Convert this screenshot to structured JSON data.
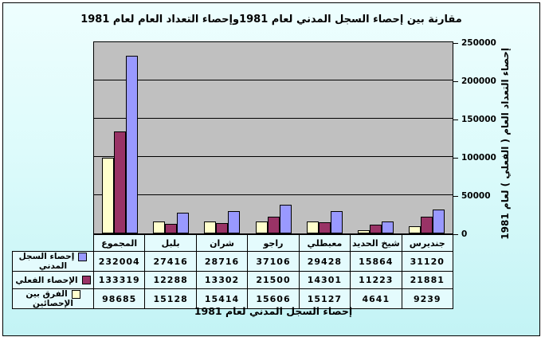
{
  "title": "مقارنة بين إحصاء السجل المدني لعام 1981وإحصاء التعداد العام لعام 1981",
  "x_axis_title": "إحصاء السجل المدني لعام 1981",
  "y_axis_title": "إحصاء التعداد العام ( الفعلي ) لعام 1981",
  "colors": {
    "plot_background": "#c0c0c0",
    "frame_background_top": "#eefefe",
    "frame_background_bottom": "#c3f3f5",
    "gridline": "#000000",
    "table_cell_background": "#e4fbfd"
  },
  "chart_data": {
    "type": "bar",
    "categories": [
      "المجموع",
      "بلبل",
      "شران",
      "راجو",
      "معبطلي",
      "شيخ الحديد",
      "جنديرس"
    ],
    "series": [
      {
        "name": "إحصاء السجل المدني",
        "color": "#9999ff",
        "values": [
          232004,
          27416,
          28716,
          37106,
          29428,
          15864,
          31120
        ]
      },
      {
        "name": "الإحصاء الفعلي",
        "color": "#993366",
        "values": [
          133319,
          12288,
          13302,
          21500,
          14301,
          11223,
          21881
        ]
      },
      {
        "name": "الفرق بين الإحصائين",
        "color": "#ffffcc",
        "values": [
          98685,
          15128,
          15414,
          15606,
          15127,
          4641,
          9239
        ]
      }
    ],
    "title": "مقارنة بين إحصاء السجل المدني لعام 1981وإحصاء التعداد العام لعام 1981",
    "xlabel": "إحصاء السجل المدني لعام 1981",
    "ylabel": "إحصاء التعداد العام ( الفعلي ) لعام 1981",
    "ylim": [
      0,
      250000
    ],
    "y_ticks": [
      0,
      50000,
      100000,
      150000,
      200000,
      250000
    ],
    "grid": true,
    "legend_position": "table-row-labels",
    "category_order": "rtl",
    "value_axis_side": "right"
  }
}
